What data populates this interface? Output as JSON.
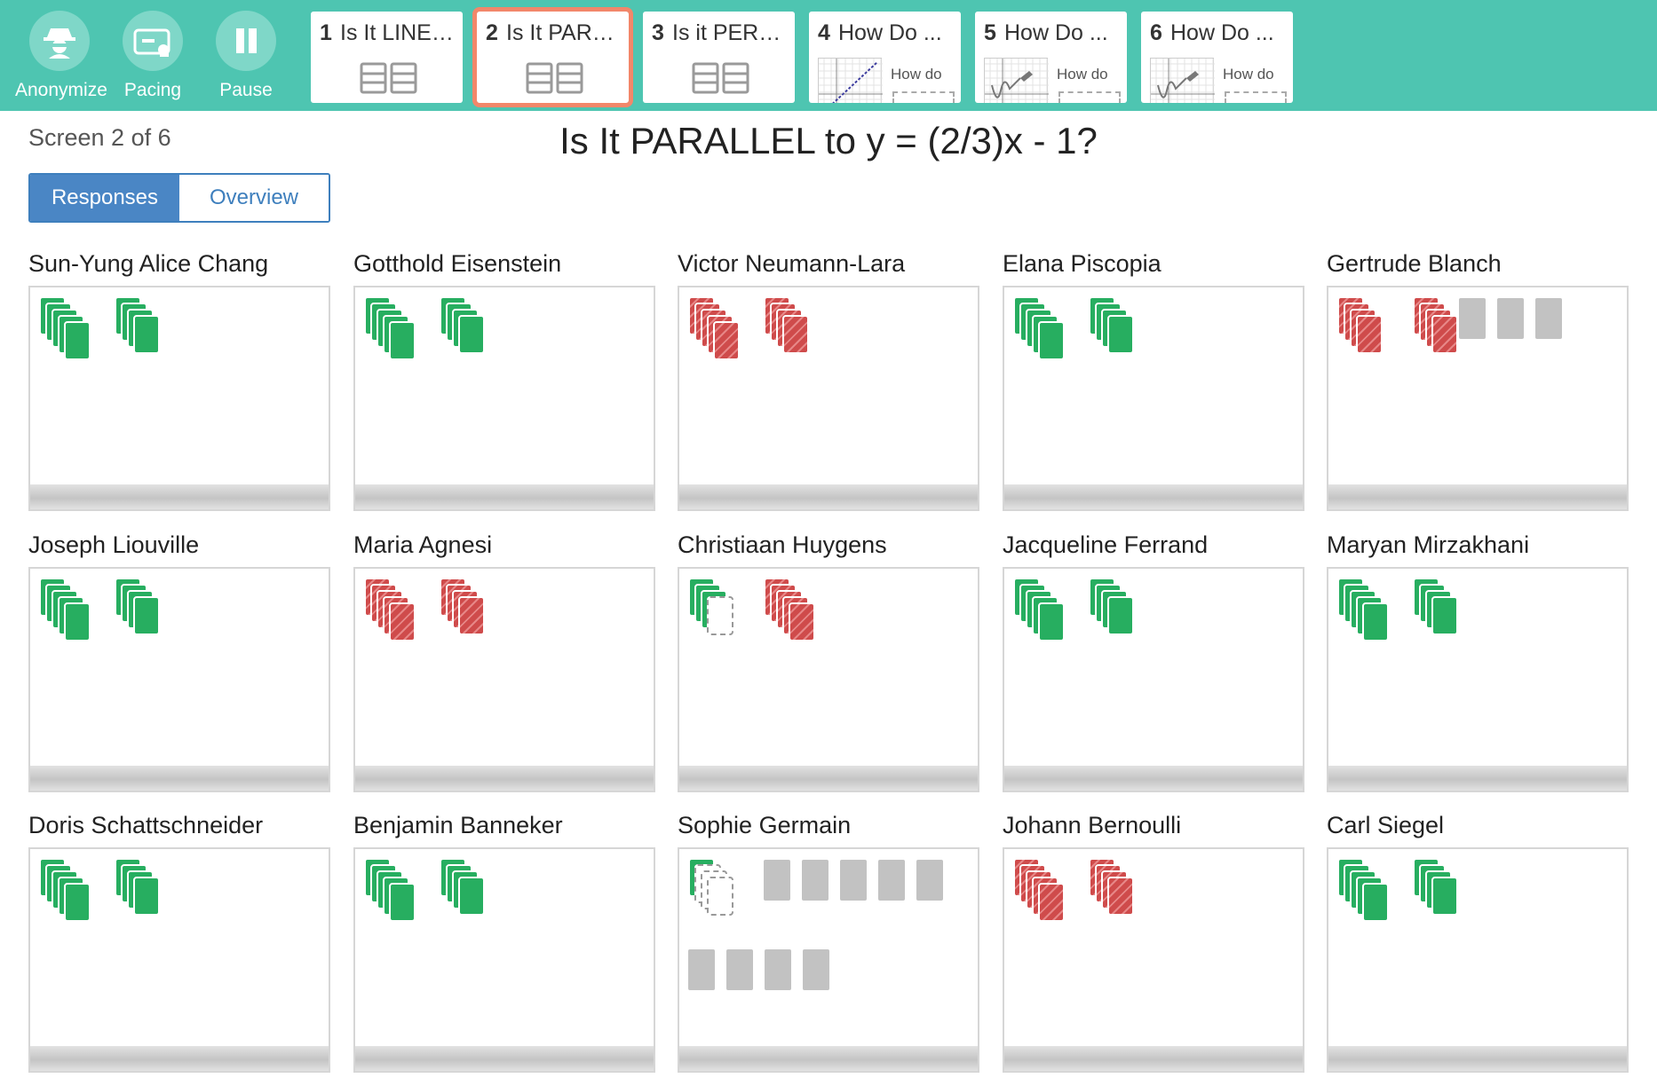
{
  "toolbar": {
    "anonymize_label": "Anonymize",
    "pacing_label": "Pacing",
    "pause_label": "Pause"
  },
  "tabs": [
    {
      "num": "1",
      "title": "Is It LINEAR?",
      "type": "card"
    },
    {
      "num": "2",
      "title": "Is It PARALLEL?",
      "type": "card",
      "active": true
    },
    {
      "num": "3",
      "title": "Is it PERPENDICULAR?",
      "type": "card"
    },
    {
      "num": "4",
      "title": "How Do ...",
      "type": "graph",
      "sub": "How do"
    },
    {
      "num": "5",
      "title": "How Do ...",
      "type": "graph",
      "sub": "How do"
    },
    {
      "num": "6",
      "title": "How Do ...",
      "type": "graph",
      "sub": "How do"
    }
  ],
  "header": {
    "screen_label": "Screen 2 of 6",
    "title": "Is It PARALLEL to y = (2/3)x - 1?",
    "responses_label": "Responses",
    "overview_label": "Overview"
  },
  "colors": {
    "accent": "#4ec5b1",
    "correct": "#27ae60",
    "incorrect": "#cf4b4b",
    "active_tab": "#f2876a"
  },
  "students": [
    {
      "name": "Sun-Yung Alice Chang",
      "stacks": [
        "green5",
        "green4"
      ]
    },
    {
      "name": "Gotthold Eisenstein",
      "stacks": [
        "green5",
        "green4"
      ]
    },
    {
      "name": "Victor Neumann-Lara",
      "stacks": [
        "red5",
        "red4"
      ]
    },
    {
      "name": "Elana Piscopia",
      "stacks": [
        "green5",
        "green4"
      ]
    },
    {
      "name": "Gertrude Blanch",
      "stacks": [
        "red4",
        "red4"
      ],
      "gray_top": 3
    },
    {
      "name": "Joseph Liouville",
      "stacks": [
        "green5",
        "green4"
      ]
    },
    {
      "name": "Maria Agnesi",
      "stacks": [
        "red5",
        "red4"
      ]
    },
    {
      "name": "Christiaan Huygens",
      "stacks": [
        "green3dash",
        "red5"
      ]
    },
    {
      "name": "Jacqueline Ferrand",
      "stacks": [
        "green5",
        "green4"
      ]
    },
    {
      "name": "Maryan Mirzakhani",
      "stacks": [
        "green5",
        "green4"
      ]
    },
    {
      "name": "Doris Schattschneider",
      "stacks": [
        "green5",
        "green4"
      ]
    },
    {
      "name": "Benjamin Banneker",
      "stacks": [
        "green5",
        "green4"
      ]
    },
    {
      "name": "Sophie Germain",
      "stacks": [
        "green1dash"
      ],
      "gray_top": 5,
      "gray_bottom": 4
    },
    {
      "name": "Johann Bernoulli",
      "stacks": [
        "red5",
        "red4"
      ]
    },
    {
      "name": "Carl Siegel",
      "stacks": [
        "green5",
        "green4"
      ]
    }
  ]
}
